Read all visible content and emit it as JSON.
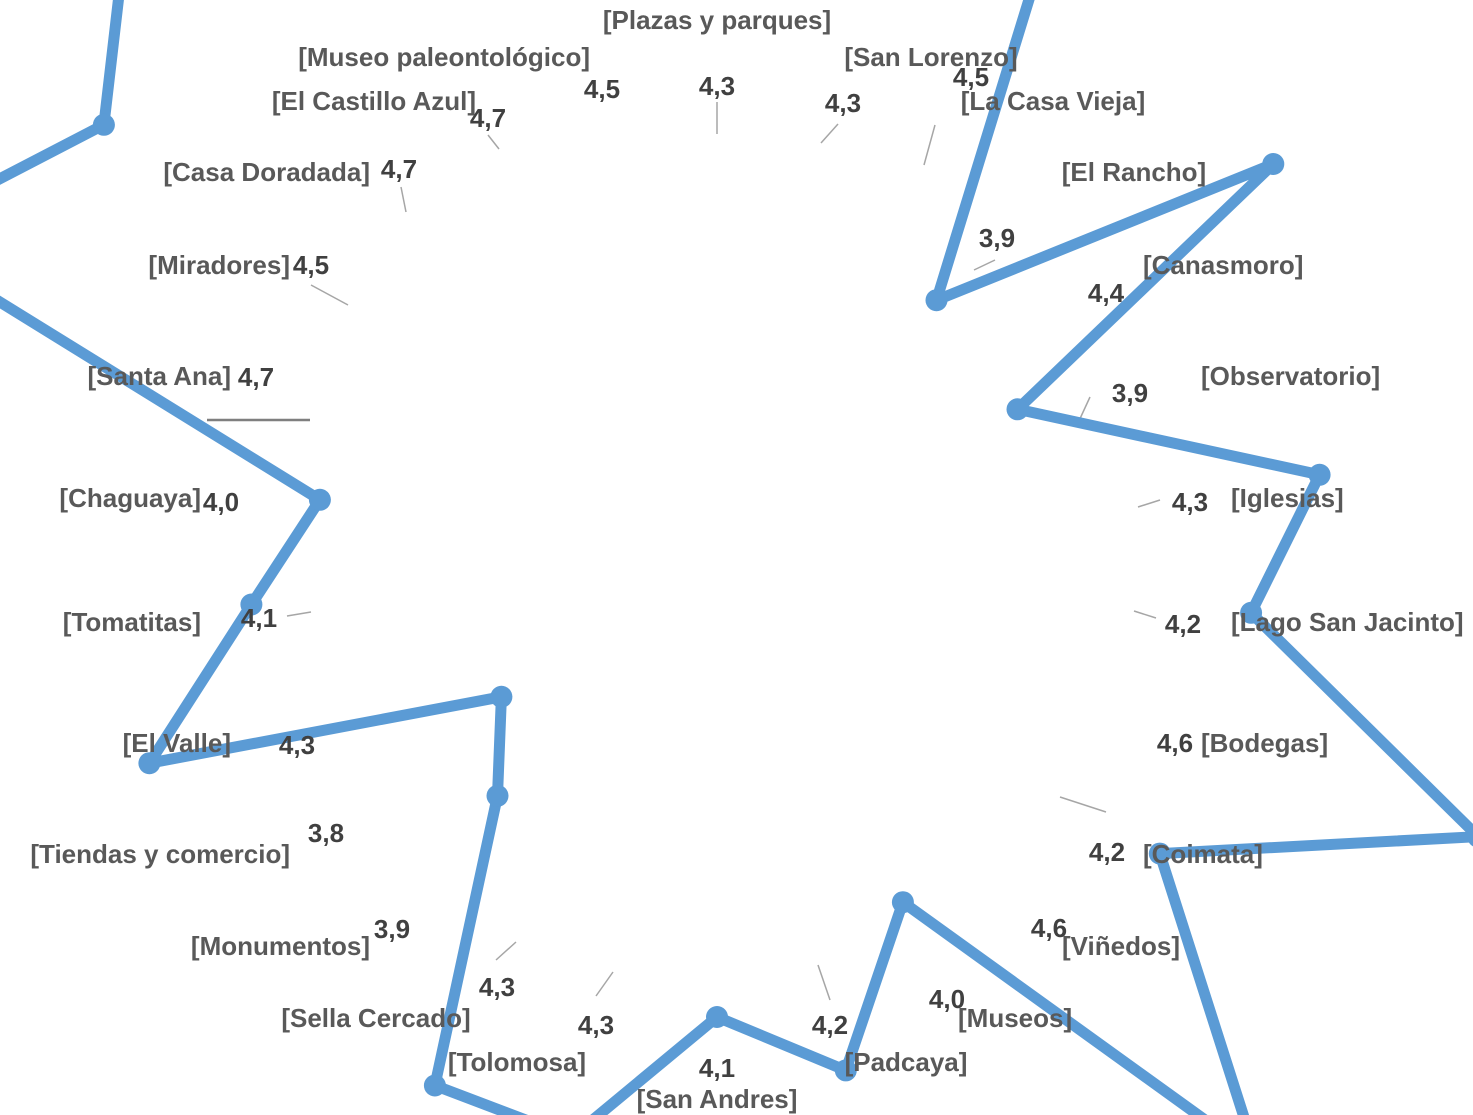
{
  "chart_data": {
    "type": "radar",
    "categories": [
      "Plazas y parques",
      "San Lorenzo",
      "La Casa Vieja",
      "El Rancho",
      "Canasmoro",
      "Observatorio",
      "Iglesias",
      "Lago San Jacinto",
      "Bodegas",
      "Coimata",
      "Viñedos",
      "Museos",
      "Padcaya",
      "San Andres",
      "Tolomosa",
      "Sella Cercado",
      "Monumentos",
      "Tiendas y comercio",
      "El Valle",
      "Tomatitas",
      "Chaguaya",
      "Santa Ana",
      "Miradores",
      "Casa Doradada",
      "El Castillo Azul",
      "Museo paleontológico"
    ],
    "category_labels": [
      "[Plazas y parques]",
      "[San Lorenzo]",
      "[La Casa Vieja]",
      "[El Rancho]",
      "[Canasmoro]",
      "[Observatorio]",
      "[Iglesias]",
      "[Lago San Jacinto]",
      "[Bodegas]",
      "[Coimata]",
      "[Viñedos]",
      "[Museos]",
      "[Padcaya]",
      "[San Andres]",
      "[Tolomosa]",
      "[Sella Cercado]",
      "[Monumentos]",
      "[Tiendas y comercio]",
      "[El Valle]",
      "[Tomatitas]",
      "[Chaguaya]",
      "[Santa Ana]",
      "[Miradores]",
      "[Casa Doradada]",
      "[El Castillo Azul]",
      "[Museo paleontológico]"
    ],
    "values": [
      4.3,
      4.3,
      4.5,
      3.9,
      4.4,
      3.9,
      4.3,
      4.2,
      4.6,
      4.2,
      4.6,
      4.0,
      4.2,
      4.1,
      4.3,
      4.3,
      3.9,
      3.8,
      4.3,
      4.1,
      4.0,
      4.7,
      4.5,
      4.7,
      4.7,
      4.5
    ],
    "value_labels": [
      "4,3",
      "4,3",
      "4,5",
      "3,9",
      "4,4",
      "3,9",
      "4,3",
      "4,2",
      "4,6",
      "4,2",
      "4,6",
      "4,0",
      "4,2",
      "4,1",
      "4,3",
      "4,3",
      "3,9",
      "3,8",
      "4,3",
      "4,1",
      "4,0",
      "4,7",
      "4,5",
      "4,7",
      "4,7",
      "4,5"
    ],
    "series_color": "#5b9bd5",
    "gridlines": false,
    "legend": "none"
  }
}
